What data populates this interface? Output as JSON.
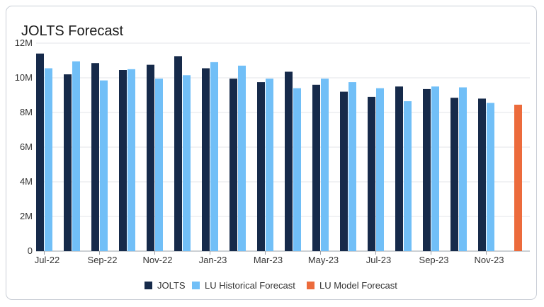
{
  "chart_data": {
    "type": "bar",
    "title": "JOLTS Forecast",
    "xlabel": "",
    "ylabel": "",
    "ylim": [
      0,
      12000000
    ],
    "y_ticks": [
      0,
      2000000,
      4000000,
      6000000,
      8000000,
      10000000,
      12000000
    ],
    "y_tick_labels": [
      "0",
      "2M",
      "4M",
      "6M",
      "8M",
      "10M",
      "12M"
    ],
    "categories": [
      "Jul-22",
      "Aug-22",
      "Sep-22",
      "Oct-22",
      "Nov-22",
      "Dec-22",
      "Jan-23",
      "Feb-23",
      "Mar-23",
      "Apr-23",
      "May-23",
      "Jun-23",
      "Jul-23",
      "Aug-23",
      "Sep-23",
      "Oct-23",
      "Nov-23",
      "Dec-23"
    ],
    "x_tick_labels": [
      "Jul-22",
      "Sep-22",
      "Nov-22",
      "Jan-23",
      "Mar-23",
      "May-23",
      "Jul-23",
      "Sep-23",
      "Nov-23"
    ],
    "grid": true,
    "legend_position": "bottom",
    "series": [
      {
        "name": "JOLTS",
        "color": "#162a4a",
        "values": [
          11400000,
          10200000,
          10850000,
          10450000,
          10750000,
          11250000,
          10550000,
          9950000,
          9750000,
          10350000,
          9600000,
          9200000,
          8900000,
          9500000,
          9350000,
          8850000,
          8800000,
          null
        ]
      },
      {
        "name": "LU Historical Forecast",
        "color": "#71bff7",
        "values": [
          10550000,
          10950000,
          9850000,
          10500000,
          9950000,
          10150000,
          10900000,
          10700000,
          9950000,
          9400000,
          9950000,
          9750000,
          9400000,
          8650000,
          9500000,
          9450000,
          8550000,
          null
        ]
      },
      {
        "name": "LU Model Forecast",
        "color": "#ec6b3c",
        "values": [
          null,
          null,
          null,
          null,
          null,
          null,
          null,
          null,
          null,
          null,
          null,
          null,
          null,
          null,
          null,
          null,
          null,
          8450000
        ]
      }
    ]
  }
}
